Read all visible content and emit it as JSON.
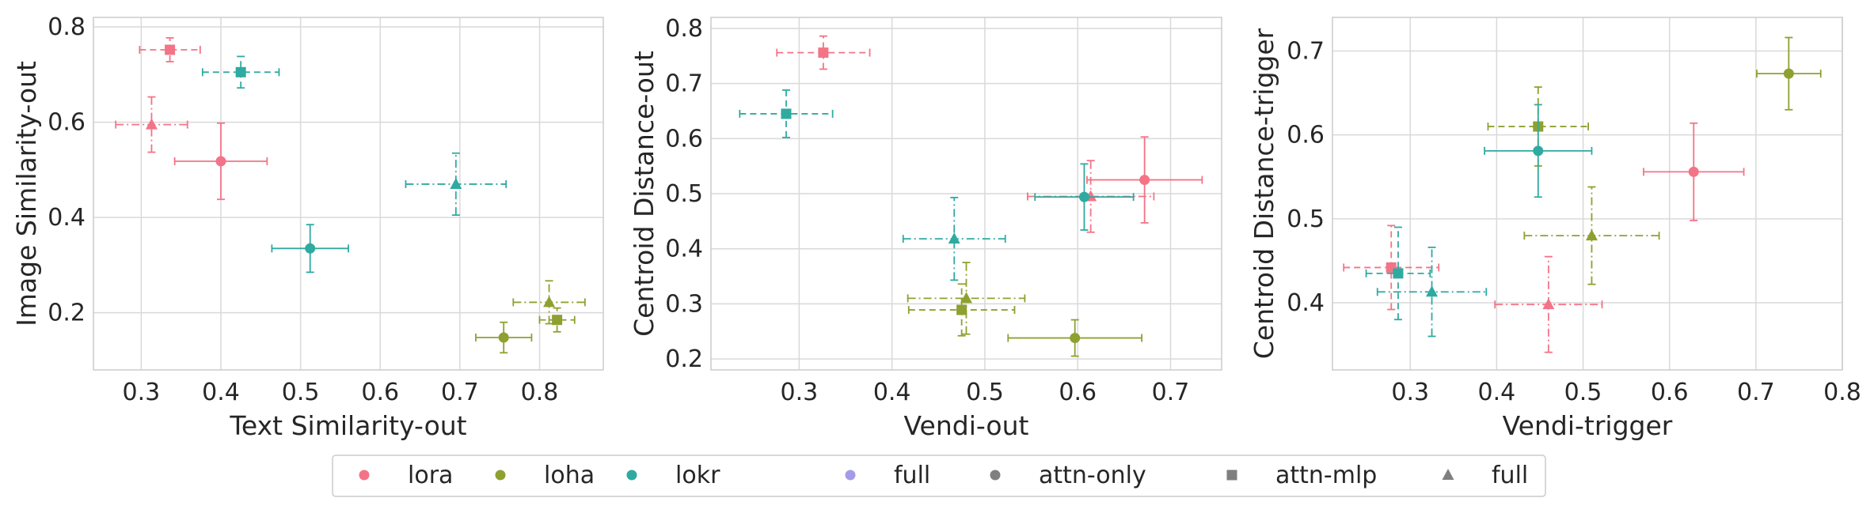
{
  "colors": {
    "lora": "#f37487",
    "loha": "#8fa030",
    "lokr": "#2faaa1",
    "full_method": "#a59ce8",
    "shape_marker": "#7f7f7f",
    "grid": "#d9d9d9",
    "spine": "#cccccc"
  },
  "legend": {
    "placement": "bottom-center",
    "entries": [
      {
        "label": "lora",
        "marker": "circle",
        "color_key": "lora"
      },
      {
        "label": "loha",
        "marker": "circle",
        "color_key": "loha"
      },
      {
        "label": "lokr",
        "marker": "circle",
        "color_key": "lokr"
      },
      {
        "label": "full",
        "marker": "circle",
        "color_key": "full_method"
      },
      {
        "label": "attn-only",
        "marker": "circle",
        "color_key": "shape_marker"
      },
      {
        "label": "attn-mlp",
        "marker": "square",
        "color_key": "shape_marker"
      },
      {
        "label": "full",
        "marker": "triangle",
        "color_key": "shape_marker"
      }
    ]
  },
  "chart_data": [
    {
      "type": "scatter",
      "xlabel": "Text Similarity-out",
      "ylabel": "Image Similarity-out",
      "xlim": [
        0.24,
        0.88
      ],
      "ylim": [
        0.08,
        0.82
      ],
      "xticks": [
        "0.3",
        "0.4",
        "0.5",
        "0.6",
        "0.7",
        "0.8"
      ],
      "yticks": [
        "0.2",
        "0.4",
        "0.6",
        "0.8"
      ],
      "grid": true,
      "points": [
        {
          "method": "lora",
          "variant": "attn-only",
          "x": 0.4,
          "y": 0.518,
          "xerr": 0.058,
          "yerr": 0.08
        },
        {
          "method": "lora",
          "variant": "attn-mlp",
          "x": 0.336,
          "y": 0.752,
          "xerr": 0.038,
          "yerr": 0.025
        },
        {
          "method": "lora",
          "variant": "full",
          "x": 0.313,
          "y": 0.595,
          "xerr": 0.045,
          "yerr": 0.058
        },
        {
          "method": "loha",
          "variant": "attn-only",
          "x": 0.755,
          "y": 0.148,
          "xerr": 0.035,
          "yerr": 0.032
        },
        {
          "method": "loha",
          "variant": "attn-mlp",
          "x": 0.822,
          "y": 0.185,
          "xerr": 0.022,
          "yerr": 0.025
        },
        {
          "method": "loha",
          "variant": "full",
          "x": 0.812,
          "y": 0.222,
          "xerr": 0.045,
          "yerr": 0.045
        },
        {
          "method": "lokr",
          "variant": "attn-only",
          "x": 0.512,
          "y": 0.335,
          "xerr": 0.048,
          "yerr": 0.05
        },
        {
          "method": "lokr",
          "variant": "attn-mlp",
          "x": 0.425,
          "y": 0.705,
          "xerr": 0.048,
          "yerr": 0.033
        },
        {
          "method": "lokr",
          "variant": "full",
          "x": 0.695,
          "y": 0.47,
          "xerr": 0.063,
          "yerr": 0.065
        }
      ]
    },
    {
      "type": "scatter",
      "xlabel": "Vendi-out",
      "ylabel": "Centroid Distance-out",
      "xlim": [
        0.205,
        0.755
      ],
      "ylim": [
        0.18,
        0.82
      ],
      "xticks": [
        "0.3",
        "0.4",
        "0.5",
        "0.6",
        "0.7"
      ],
      "yticks": [
        "0.2",
        "0.3",
        "0.4",
        "0.5",
        "0.6",
        "0.7",
        "0.8"
      ],
      "grid": true,
      "points": [
        {
          "method": "lora",
          "variant": "attn-only",
          "x": 0.672,
          "y": 0.525,
          "xerr": 0.062,
          "yerr": 0.078
        },
        {
          "method": "lora",
          "variant": "attn-mlp",
          "x": 0.326,
          "y": 0.756,
          "xerr": 0.05,
          "yerr": 0.03
        },
        {
          "method": "lora",
          "variant": "full",
          "x": 0.614,
          "y": 0.495,
          "xerr": 0.068,
          "yerr": 0.065
        },
        {
          "method": "loha",
          "variant": "attn-only",
          "x": 0.597,
          "y": 0.238,
          "xerr": 0.072,
          "yerr": 0.033
        },
        {
          "method": "loha",
          "variant": "attn-mlp",
          "x": 0.475,
          "y": 0.289,
          "xerr": 0.057,
          "yerr": 0.047
        },
        {
          "method": "loha",
          "variant": "full",
          "x": 0.48,
          "y": 0.31,
          "xerr": 0.063,
          "yerr": 0.065
        },
        {
          "method": "lokr",
          "variant": "attn-only",
          "x": 0.607,
          "y": 0.494,
          "xerr": 0.053,
          "yerr": 0.06
        },
        {
          "method": "lokr",
          "variant": "attn-mlp",
          "x": 0.286,
          "y": 0.645,
          "xerr": 0.05,
          "yerr": 0.043
        },
        {
          "method": "lokr",
          "variant": "full",
          "x": 0.467,
          "y": 0.418,
          "xerr": 0.055,
          "yerr": 0.075
        }
      ]
    },
    {
      "type": "scatter",
      "xlabel": "Vendi-trigger",
      "ylabel": "Centroid Distance-trigger",
      "xlim": [
        0.21,
        0.8
      ],
      "ylim": [
        0.32,
        0.74
      ],
      "xticks": [
        "0.3",
        "0.4",
        "0.5",
        "0.6",
        "0.7",
        "0.8"
      ],
      "yticks": [
        "0.4",
        "0.5",
        "0.6",
        "0.7"
      ],
      "grid": true,
      "points": [
        {
          "method": "lora",
          "variant": "attn-only",
          "x": 0.628,
          "y": 0.556,
          "xerr": 0.058,
          "yerr": 0.058
        },
        {
          "method": "lora",
          "variant": "attn-mlp",
          "x": 0.278,
          "y": 0.442,
          "xerr": 0.055,
          "yerr": 0.05
        },
        {
          "method": "lora",
          "variant": "full",
          "x": 0.46,
          "y": 0.398,
          "xerr": 0.062,
          "yerr": 0.057
        },
        {
          "method": "loha",
          "variant": "attn-only",
          "x": 0.738,
          "y": 0.673,
          "xerr": 0.037,
          "yerr": 0.043
        },
        {
          "method": "loha",
          "variant": "attn-mlp",
          "x": 0.448,
          "y": 0.61,
          "xerr": 0.058,
          "yerr": 0.047
        },
        {
          "method": "loha",
          "variant": "full",
          "x": 0.51,
          "y": 0.48,
          "xerr": 0.078,
          "yerr": 0.058
        },
        {
          "method": "lokr",
          "variant": "attn-only",
          "x": 0.448,
          "y": 0.581,
          "xerr": 0.062,
          "yerr": 0.055
        },
        {
          "method": "lokr",
          "variant": "attn-mlp",
          "x": 0.286,
          "y": 0.435,
          "xerr": 0.037,
          "yerr": 0.055
        },
        {
          "method": "lokr",
          "variant": "full",
          "x": 0.325,
          "y": 0.413,
          "xerr": 0.063,
          "yerr": 0.053
        }
      ]
    }
  ]
}
